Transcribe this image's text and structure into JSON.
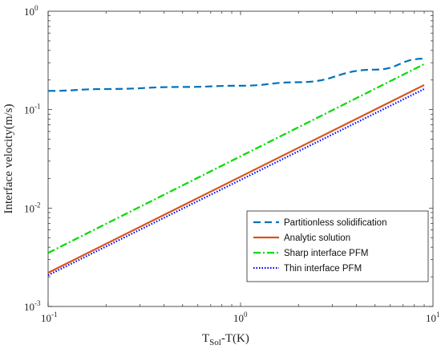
{
  "chart_data": {
    "type": "line",
    "xscale": "log",
    "yscale": "log",
    "xlim": [
      0.1,
      10
    ],
    "ylim": [
      0.001,
      1
    ],
    "xlabel_main": "T",
    "xlabel_sub": "Sol",
    "xlabel_tail": "-T(K)",
    "ylabel": "Interface velocity(m/s)",
    "x_ticks": [
      {
        "base": "10",
        "exp": "-1",
        "value": 0.1
      },
      {
        "base": "10",
        "exp": "0",
        "value": 1
      },
      {
        "base": "10",
        "exp": "1",
        "value": 10
      }
    ],
    "y_ticks": [
      {
        "base": "10",
        "exp": "-3",
        "value": 0.001
      },
      {
        "base": "10",
        "exp": "-2",
        "value": 0.01
      },
      {
        "base": "10",
        "exp": "-1",
        "value": 0.1
      },
      {
        "base": "10",
        "exp": "0",
        "value": 1
      }
    ],
    "grid": false,
    "legend_position": "bottom-right",
    "series": [
      {
        "name": "Partitionless solidification",
        "color": "#0072BD",
        "style": "dashed",
        "x": [
          0.1,
          0.2,
          0.5,
          1.0,
          2.0,
          5.0,
          9.0
        ],
        "y": [
          0.155,
          0.162,
          0.17,
          0.175,
          0.19,
          0.255,
          0.33
        ]
      },
      {
        "name": "Analytic solution",
        "color": "#D95319",
        "style": "solid",
        "x": [
          0.1,
          9.0
        ],
        "y": [
          0.0022,
          0.178
        ]
      },
      {
        "name": "Sharp interface PFM",
        "color": "#00DD00",
        "style": "dashdot",
        "x": [
          0.1,
          9.0
        ],
        "y": [
          0.0035,
          0.29
        ]
      },
      {
        "name": "Thin interface PFM",
        "color": "#0000FF",
        "style": "dotted",
        "x": [
          0.1,
          9.0
        ],
        "y": [
          0.00208,
          0.162
        ]
      }
    ]
  }
}
